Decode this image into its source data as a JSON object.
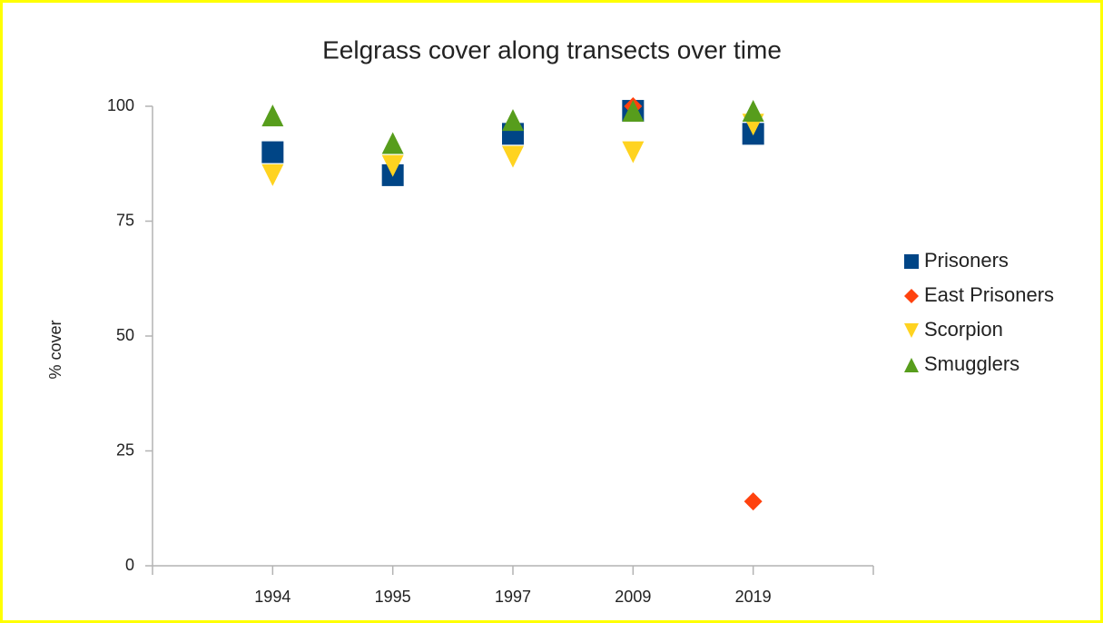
{
  "chart_data": {
    "type": "scatter",
    "title": "Eelgrass cover along transects over time",
    "y_label": "% cover",
    "categories": [
      "1994",
      "1995",
      "1997",
      "2009",
      "2019"
    ],
    "series": [
      {
        "name": "Prisoners",
        "color": "#004586",
        "marker": "square",
        "values": [
          90,
          85,
          94,
          99,
          94
        ]
      },
      {
        "name": "East Prisoners",
        "color": "#ff420e",
        "marker": "diamond",
        "values": [
          null,
          null,
          null,
          100,
          14
        ]
      },
      {
        "name": "Scorpion",
        "color": "#ffd320",
        "marker": "triangle-down",
        "values": [
          85,
          87,
          89,
          90,
          96
        ]
      },
      {
        "name": "Smugglers",
        "color": "#579d1c",
        "marker": "triangle-up",
        "values": [
          98,
          92,
          97,
          99,
          99
        ]
      }
    ],
    "ylim": [
      0,
      100
    ],
    "yticks": [
      0,
      25,
      50,
      75,
      100
    ],
    "grid": false,
    "legend": "right"
  }
}
